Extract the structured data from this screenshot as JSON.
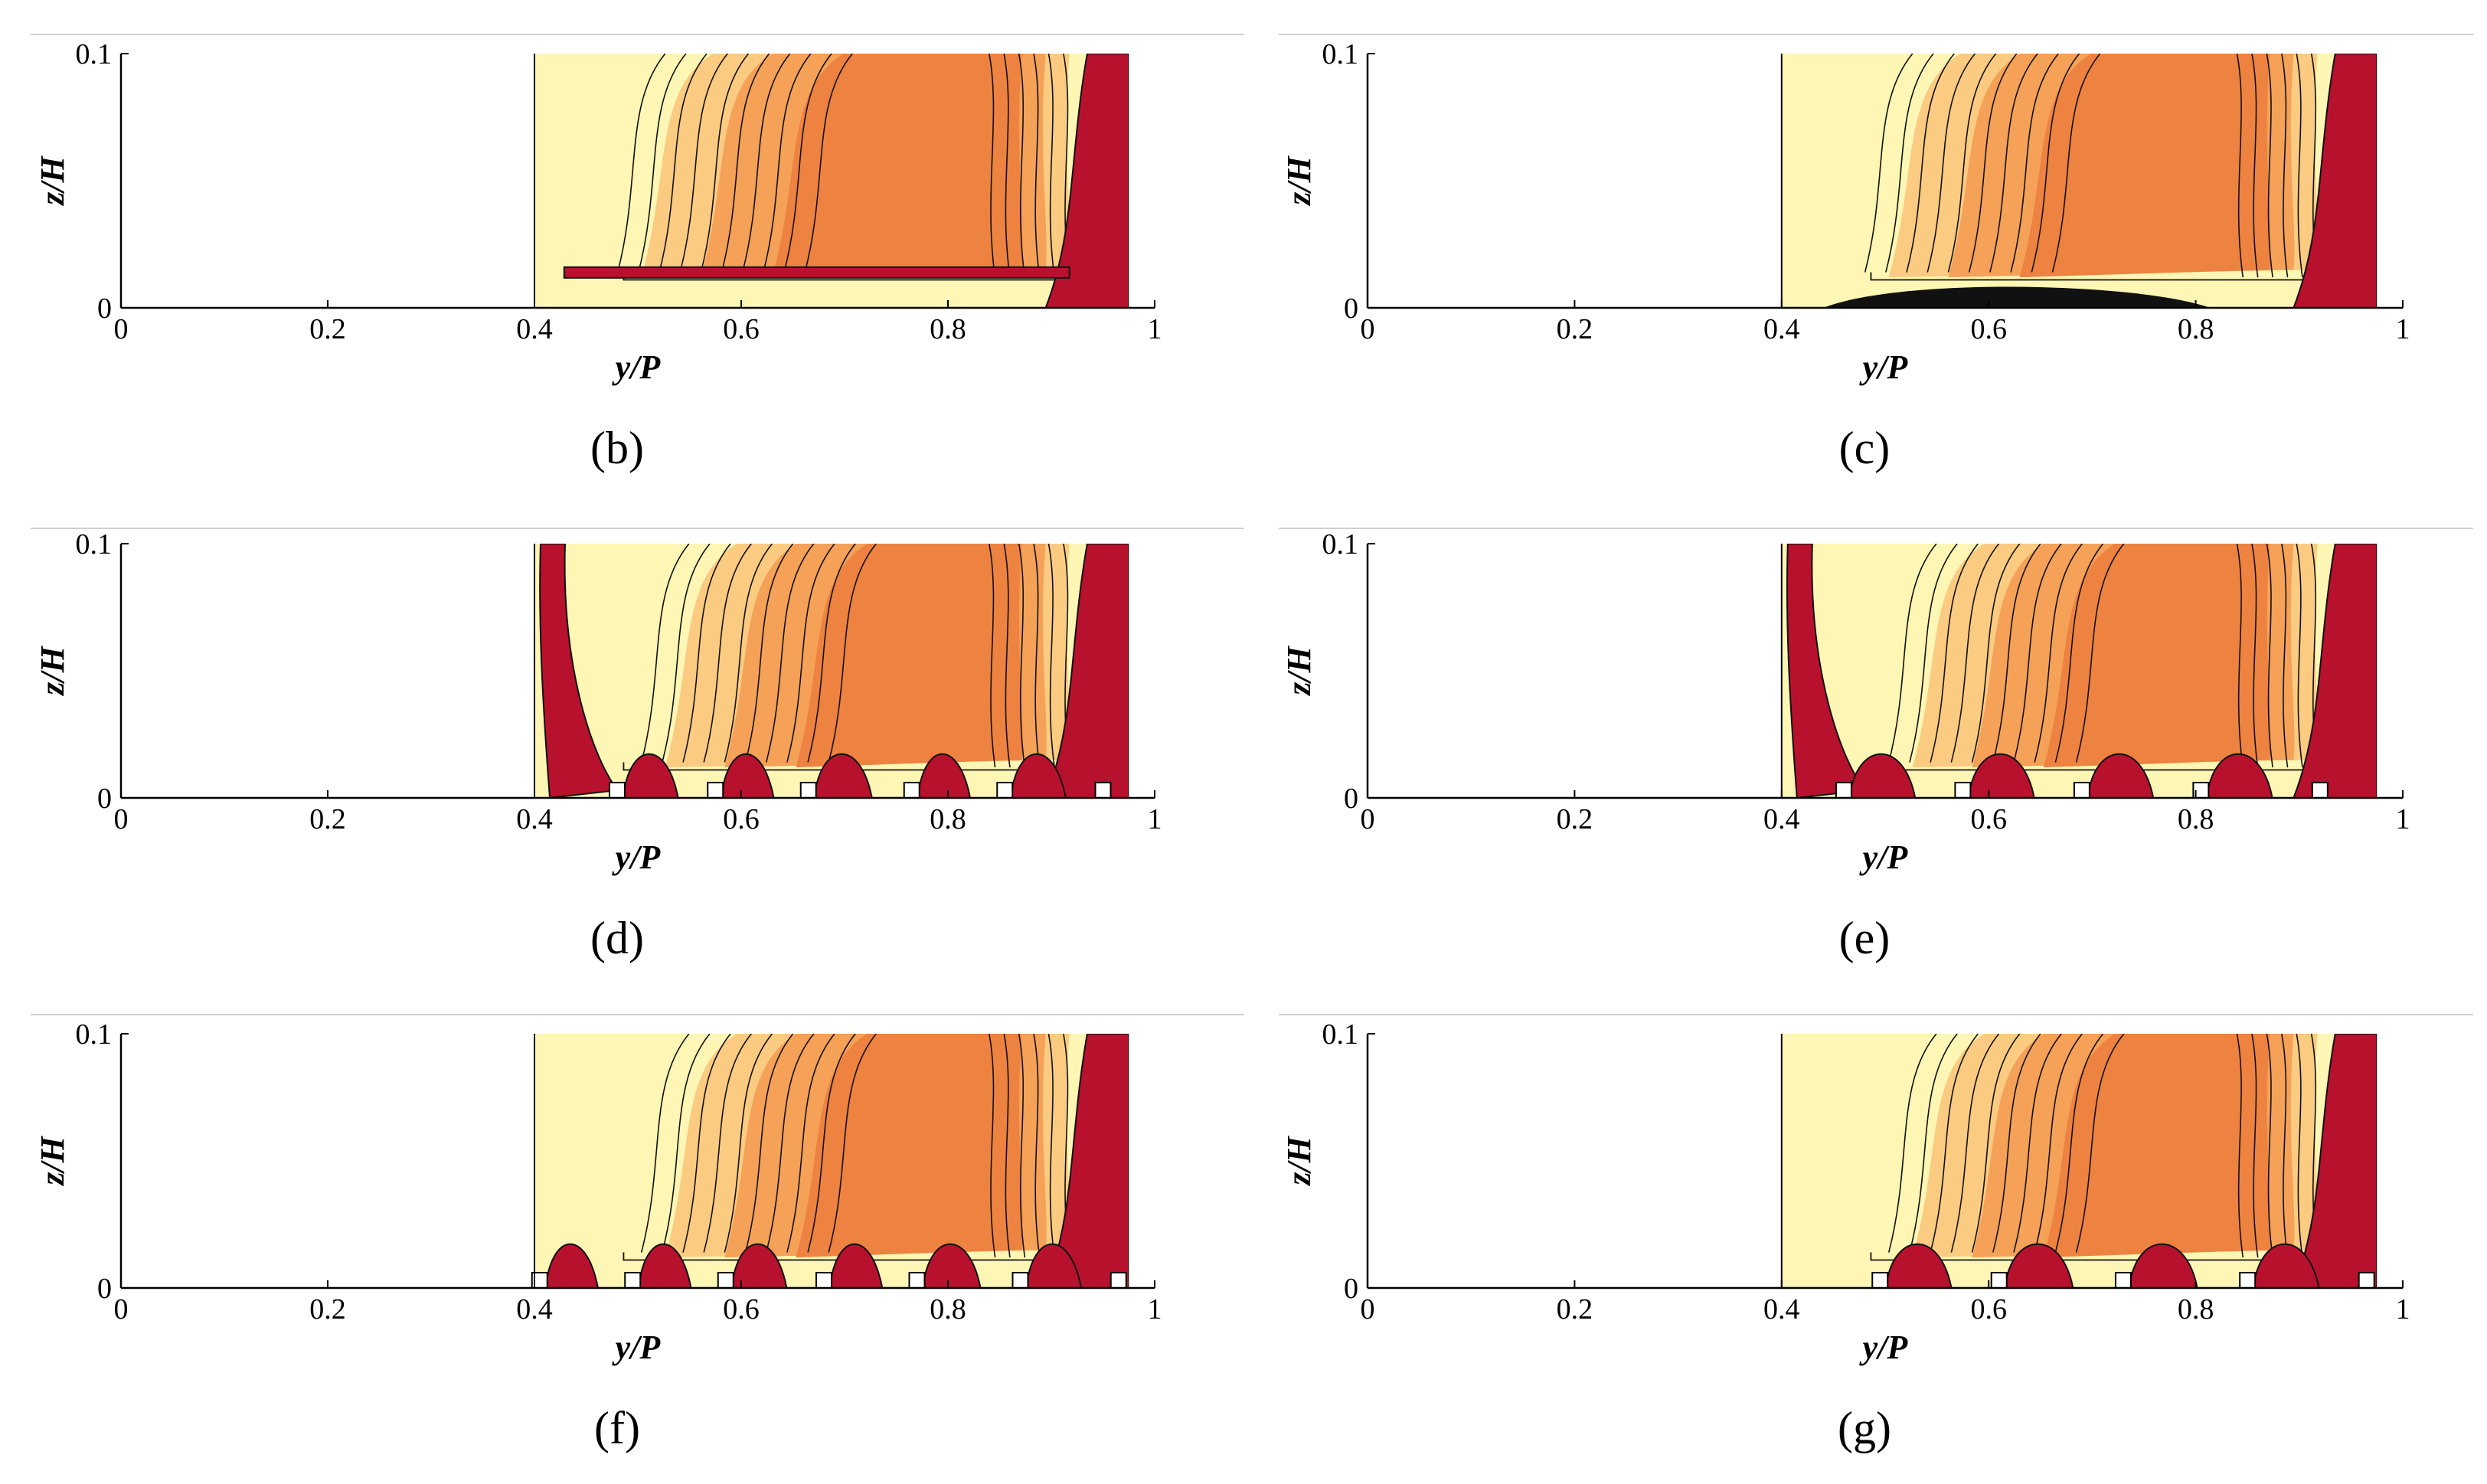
{
  "figure": {
    "panels": [
      {
        "id": "b",
        "label": "(b)",
        "obstacles": []
      },
      {
        "id": "c",
        "label": "(c)",
        "obstacles": []
      },
      {
        "id": "d",
        "label": "(d)",
        "obstacles": [
          0.48,
          0.575,
          0.665,
          0.765,
          0.855,
          0.95
        ]
      },
      {
        "id": "e",
        "label": "(e)",
        "obstacles": [
          0.46,
          0.575,
          0.69,
          0.805,
          0.92
        ]
      },
      {
        "id": "f",
        "label": "(f)",
        "obstacles": [
          0.405,
          0.495,
          0.585,
          0.68,
          0.77,
          0.87,
          0.965
        ]
      },
      {
        "id": "g",
        "label": "(g)",
        "obstacles": [
          0.495,
          0.61,
          0.73,
          0.85,
          0.965
        ]
      }
    ],
    "x_axis": {
      "label": "y/P",
      "ticks": [
        "0",
        "0.2",
        "0.4",
        "0.6",
        "0.8",
        "1"
      ],
      "range": [
        0,
        1
      ]
    },
    "y_axis": {
      "label": "z/H",
      "ticks": [
        "0",
        "0.1"
      ],
      "range": [
        0,
        0.1
      ]
    },
    "domain_start": 0.4,
    "colors": {
      "pale": "#fdf6b4",
      "light_orange": "#fbcb82",
      "orange": "#f5a158",
      "dark_orange": "#ee8240",
      "red": "#b8112e",
      "contour": "#111111",
      "frame": "#000000"
    }
  }
}
